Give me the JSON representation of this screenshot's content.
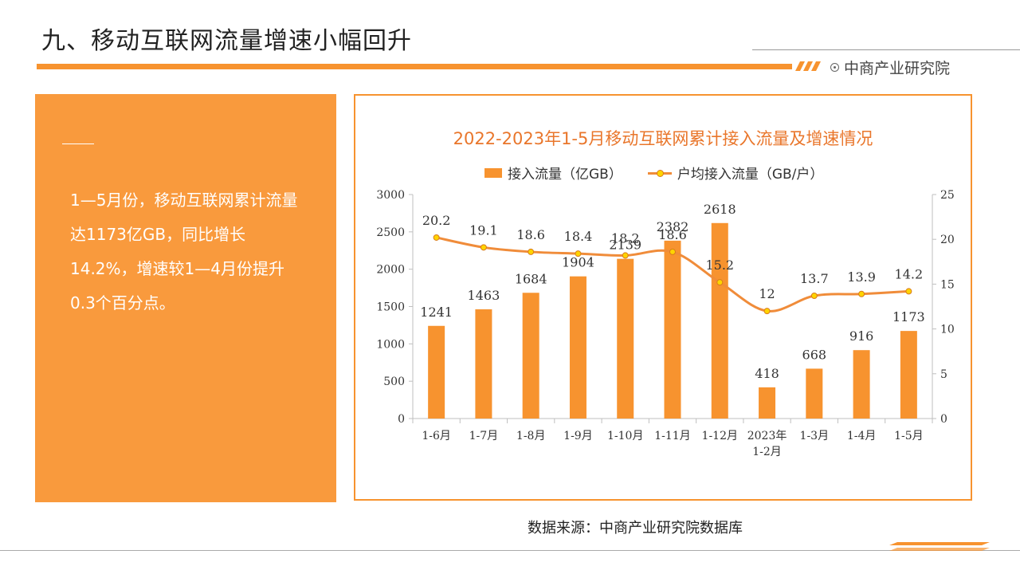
{
  "header": {
    "title": "九、移动互联网流量增速小幅回升",
    "brand": "中商产业研究院",
    "brand_icon": "target-icon"
  },
  "panel": {
    "text": "1—5月份，移动互联网累计流量达1173亿GB，同比增长14.2%，增速较1—4月份提升0.3个百分点。",
    "background": "#f99a3d"
  },
  "source": "数据来源：中商产业研究院数据库",
  "colors": {
    "accent": "#f7932f",
    "line": "#f08c3a",
    "marker": "#ffd400"
  },
  "chart_data": {
    "type": "bar",
    "title": "2022-2023年1-5月移动互联网累计接入流量及增速情况",
    "categories": [
      "1-6月",
      "1-7月",
      "1-8月",
      "1-9月",
      "1-10月",
      "1-11月",
      "1-12月",
      "2023年 1-2月",
      "1-3月",
      "1-4月",
      "1-5月"
    ],
    "series": [
      {
        "name": "接入流量（亿GB）",
        "kind": "bar",
        "axis": "left",
        "values": [
          1241,
          1463,
          1684,
          1904,
          2139,
          2382,
          2618,
          418,
          668,
          916,
          1173
        ]
      },
      {
        "name": "户均接入流量（GB/户）",
        "kind": "line",
        "axis": "right",
        "values": [
          20.2,
          19.1,
          18.6,
          18.4,
          18.2,
          18.6,
          15.2,
          12,
          13.7,
          13.9,
          14.2
        ]
      }
    ],
    "ylim_left": [
      0,
      3000
    ],
    "ylim_right": [
      0,
      25
    ],
    "yticks_left": [
      0,
      500,
      1000,
      1500,
      2000,
      2500,
      3000
    ],
    "yticks_right": [
      0,
      5,
      10,
      15,
      20,
      25
    ],
    "legend": "top",
    "grid": false
  }
}
